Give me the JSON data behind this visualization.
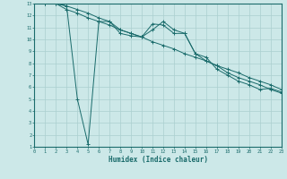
{
  "xlabel": "Humidex (Indice chaleur)",
  "bg_color": "#cce8e8",
  "grid_color": "#aacfcf",
  "line_color": "#1a6b6b",
  "xlim": [
    0,
    23
  ],
  "ylim": [
    1,
    13
  ],
  "xticks": [
    0,
    1,
    2,
    3,
    4,
    5,
    6,
    7,
    8,
    9,
    10,
    11,
    12,
    13,
    14,
    15,
    16,
    17,
    18,
    19,
    20,
    21,
    22,
    23
  ],
  "yticks": [
    1,
    2,
    3,
    4,
    5,
    6,
    7,
    8,
    9,
    10,
    11,
    12,
    13
  ],
  "line1_x": [
    0,
    1,
    2,
    3,
    4,
    5,
    6,
    7,
    8,
    9,
    10,
    11,
    12,
    13,
    14,
    15,
    16,
    17,
    18,
    19,
    20,
    21,
    22,
    23
  ],
  "line1_y": [
    13,
    13,
    13,
    12.8,
    5.0,
    1.2,
    11.5,
    11.5,
    10.5,
    10.3,
    10.2,
    11.3,
    11.2,
    10.5,
    10.5,
    8.8,
    8.5,
    7.5,
    7.0,
    6.5,
    6.2,
    5.8,
    5.9,
    5.6
  ],
  "line2_x": [
    0,
    1,
    2,
    3,
    4,
    5,
    6,
    7,
    8,
    9,
    10,
    11,
    12,
    13,
    14,
    15,
    16,
    17,
    18,
    19,
    20,
    21,
    22,
    23
  ],
  "line2_y": [
    13,
    13,
    13,
    12.5,
    12.2,
    11.8,
    11.5,
    11.2,
    10.8,
    10.5,
    10.2,
    9.8,
    9.5,
    9.2,
    8.8,
    8.5,
    8.2,
    7.8,
    7.5,
    7.2,
    6.8,
    6.5,
    6.2,
    5.8
  ],
  "line3_x": [
    0,
    1,
    2,
    3,
    4,
    5,
    6,
    7,
    8,
    9,
    10,
    11,
    12,
    13,
    14,
    15,
    16,
    17,
    18,
    19,
    20,
    21,
    22,
    23
  ],
  "line3_y": [
    13,
    13,
    13,
    12.8,
    12.5,
    12.2,
    11.8,
    11.5,
    10.8,
    10.5,
    10.2,
    10.8,
    11.5,
    10.8,
    10.5,
    8.8,
    8.2,
    7.8,
    7.2,
    6.8,
    6.5,
    6.2,
    5.8,
    5.5
  ]
}
